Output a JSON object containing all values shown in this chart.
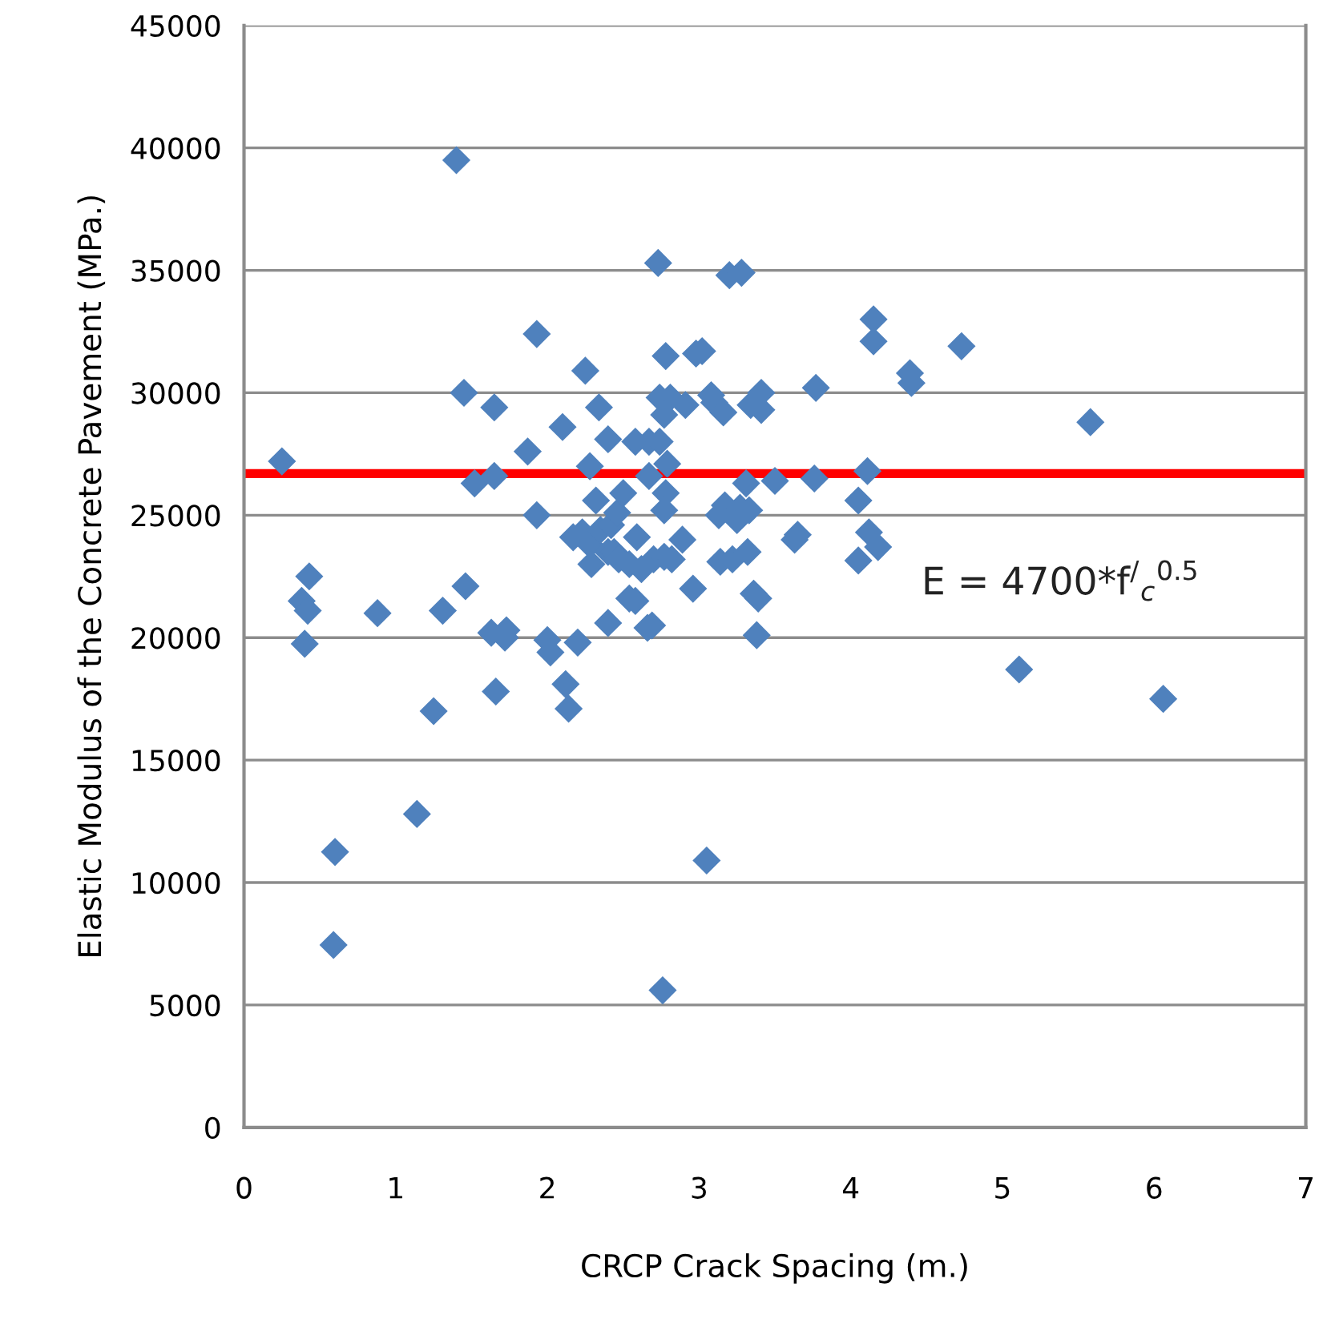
{
  "chart_data": {
    "type": "scatter",
    "xlabel": "CRCP Crack Spacing (m.)",
    "ylabel": "Elastic Modulus of the Concrete Pavement (MPa.)",
    "xlim": [
      0,
      7
    ],
    "xticks": [
      0,
      1,
      2,
      3,
      4,
      5,
      6,
      7
    ],
    "ylim": [
      0,
      45000
    ],
    "yticks": [
      0,
      5000,
      10000,
      15000,
      20000,
      25000,
      30000,
      35000,
      40000,
      45000
    ],
    "grid": "y",
    "legend": false,
    "marker": "diamond",
    "ref_lines": [
      {
        "axis": "y",
        "value": 26700,
        "color": "#ff0000",
        "line_style": "solid"
      }
    ],
    "annotations": [
      "E = 4700*f$^{/}$$_{c}$$^{0.5}$"
    ],
    "series": [
      {
        "color": "#4f81bd",
        "x": [
          0.25,
          0.38,
          0.43,
          0.42,
          0.4,
          0.59,
          0.6,
          0.88,
          1.14,
          1.25,
          1.31,
          1.4,
          1.45,
          1.46,
          1.52,
          1.63,
          1.65,
          1.65,
          1.66,
          1.72,
          1.73,
          1.87,
          1.93,
          1.93,
          2.0,
          2.02,
          2.1,
          2.12,
          2.14,
          2.17,
          2.2,
          2.23,
          2.28,
          2.32,
          2.25,
          2.29,
          2.28,
          2.34,
          2.4,
          2.35,
          2.4,
          2.44,
          2.42,
          2.46,
          2.47,
          2.5,
          2.54,
          2.4,
          2.54,
          2.58,
          2.62,
          2.58,
          2.59,
          2.67,
          2.67,
          2.66,
          2.74,
          2.7,
          2.69,
          2.73,
          2.74,
          2.78,
          2.81,
          2.77,
          2.79,
          2.78,
          2.77,
          2.77,
          2.82,
          2.76,
          2.89,
          2.91,
          2.96,
          2.98,
          3.02,
          3.05,
          3.08,
          3.1,
          3.13,
          3.14,
          3.17,
          3.16,
          3.2,
          3.22,
          3.25,
          3.27,
          3.28,
          3.32,
          3.31,
          3.34,
          3.33,
          3.36,
          3.38,
          3.39,
          3.41,
          3.41,
          3.5,
          3.63,
          3.65,
          3.76,
          3.77,
          4.05,
          4.05,
          4.11,
          4.12,
          4.18,
          4.15,
          4.15,
          4.39,
          4.4,
          4.73,
          5.11,
          5.58,
          6.06
        ],
        "values": [
          27200,
          21500,
          22500,
          21100,
          19750,
          7450,
          11250,
          21000,
          12800,
          17000,
          21100,
          39500,
          30000,
          22100,
          26300,
          20200,
          29400,
          26600,
          17800,
          20000,
          20300,
          27600,
          32400,
          25000,
          19900,
          19400,
          28600,
          18100,
          17100,
          24100,
          19800,
          24300,
          23800,
          25600,
          30900,
          23000,
          27000,
          29400,
          20600,
          24400,
          23500,
          23500,
          24600,
          25100,
          23200,
          25900,
          23000,
          28100,
          21600,
          21500,
          22800,
          28000,
          24100,
          28000,
          26600,
          20400,
          29800,
          23200,
          20500,
          35300,
          28000,
          31500,
          29800,
          29100,
          27100,
          25900,
          25200,
          23300,
          23200,
          5600,
          24000,
          29500,
          22000,
          31600,
          31700,
          10900,
          29900,
          29600,
          25000,
          23100,
          25400,
          29200,
          34800,
          23200,
          24800,
          25300,
          34900,
          23500,
          26300,
          29500,
          25200,
          21800,
          20100,
          21600,
          30000,
          29300,
          26400,
          24000,
          24200,
          26500,
          30200,
          23150,
          25600,
          26800,
          24300,
          23700,
          33000,
          32100,
          30800,
          30400,
          31900,
          18700,
          28800,
          17500
        ]
      }
    ]
  }
}
